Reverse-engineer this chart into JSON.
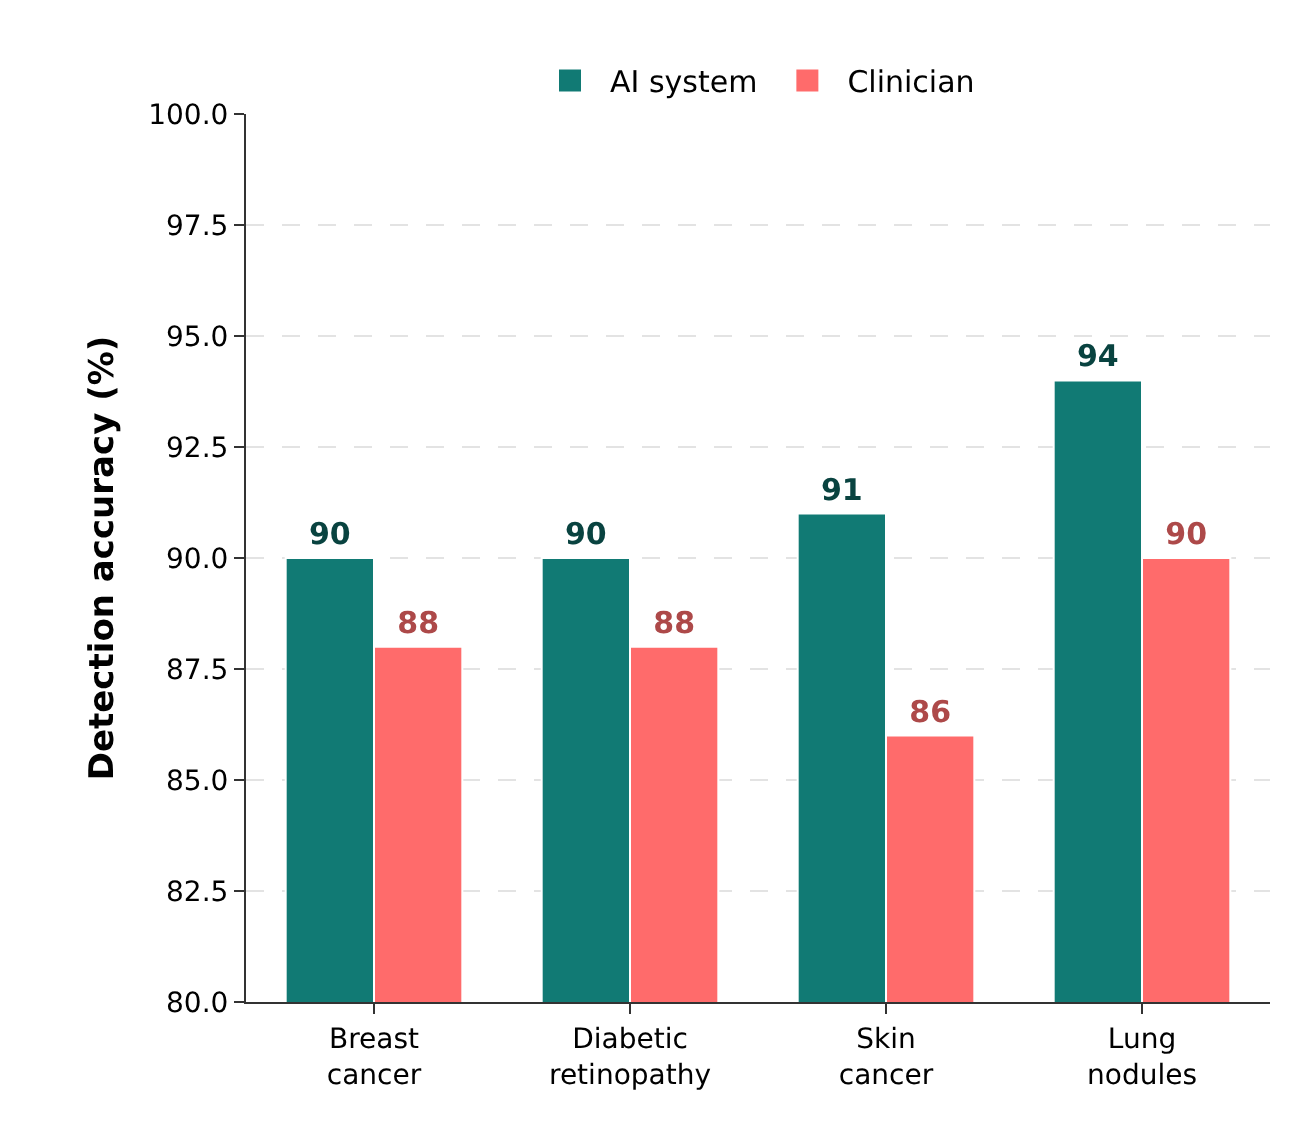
{
  "chart_data": {
    "type": "bar",
    "ylabel": "Detection accuracy (%)",
    "categories": [
      "Breast cancer",
      "Diabetic retinopathy",
      "Skin cancer",
      "Lung nodules"
    ],
    "series": [
      {
        "name": "AI system",
        "color": "#117a74",
        "values": [
          90,
          90,
          91,
          94
        ]
      },
      {
        "name": "Clinician",
        "color": "#ff6b6b",
        "values": [
          88,
          88,
          86,
          90
        ]
      }
    ],
    "ylim": [
      80,
      100
    ],
    "yticks": [
      {
        "value": 80,
        "label": "80.0"
      },
      {
        "value": 82.5,
        "label": "82.5"
      },
      {
        "value": 85,
        "label": "85.0"
      },
      {
        "value": 87.5,
        "label": "87.5"
      },
      {
        "value": 90,
        "label": "90.0"
      },
      {
        "value": 92.5,
        "label": "92.5"
      },
      {
        "value": 95,
        "label": "95.0"
      },
      {
        "value": 97.5,
        "label": "97.5"
      },
      {
        "value": 100,
        "label": "100.0"
      }
    ],
    "grid": "y",
    "legend": "top",
    "data_labels": true
  }
}
